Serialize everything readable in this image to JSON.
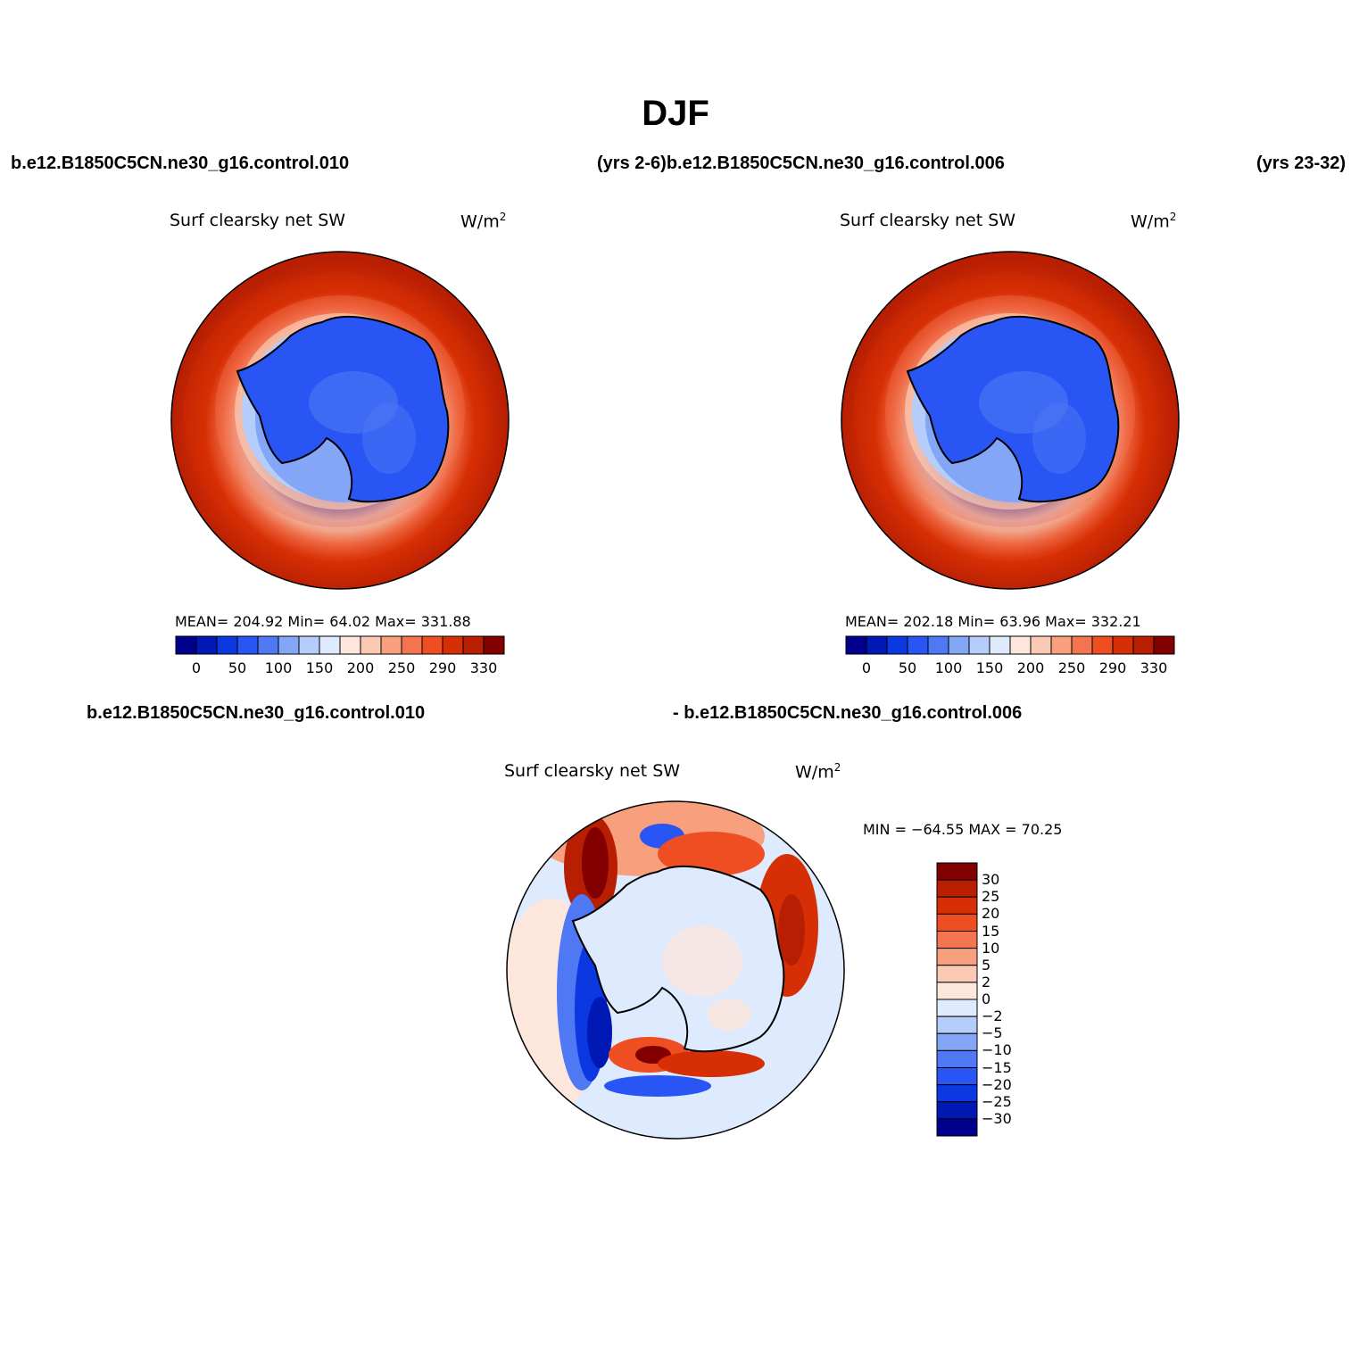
{
  "title": "DJF",
  "header": {
    "case_left": "b.e12.B1850C5CN.ne30_g16.control.010",
    "years_mid": "(yrs 2-6)b.e12.B1850C5CN.ne30_g16.control.006",
    "years_right": "(yrs 23-32)"
  },
  "panels": {
    "left": {
      "variable": "Surf clearsky net SW",
      "units": "W/m",
      "units_sup": "2",
      "stats": "MEAN= 204.92   Min=   64.02   Max= 331.88"
    },
    "right": {
      "variable": "Surf clearsky net SW",
      "units": "W/m",
      "units_sup": "2",
      "stats": "MEAN= 202.18   Min=   63.96   Max= 332.21"
    },
    "diff": {
      "case_a": "b.e12.B1850C5CN.ne30_g16.control.010",
      "case_b": "- b.e12.B1850C5CN.ne30_g16.control.006",
      "variable": "Surf clearsky net SW",
      "units": "W/m",
      "units_sup": "2",
      "stats": "MIN = −64.55  MAX =   70.25"
    }
  },
  "colorbar_abs": {
    "colors": [
      "#00008c",
      "#0018b4",
      "#0b38e0",
      "#2a55f5",
      "#4e78f4",
      "#83a6f7",
      "#b5cdfa",
      "#deeafd",
      "#fde6dc",
      "#fbcab4",
      "#f8a07e",
      "#f4744f",
      "#ef4d22",
      "#d72f05",
      "#b71e02",
      "#820000"
    ],
    "labels": [
      "0",
      "50",
      "100",
      "150",
      "200",
      "250",
      "290",
      "330"
    ]
  },
  "colorbar_diff": {
    "colors": [
      "#820000",
      "#b71e02",
      "#d72f05",
      "#ef4d22",
      "#f4744f",
      "#f8a07e",
      "#fbcab4",
      "#fde6dc",
      "#deeafd",
      "#b5cdfa",
      "#83a6f7",
      "#4e78f4",
      "#2a55f5",
      "#0b38e0",
      "#0018b4",
      "#00008c"
    ],
    "labels": [
      "30",
      "25",
      "20",
      "15",
      "10",
      "5",
      "2",
      "0",
      "−2",
      "−5",
      "−10",
      "−15",
      "−20",
      "−25",
      "−30"
    ]
  }
}
